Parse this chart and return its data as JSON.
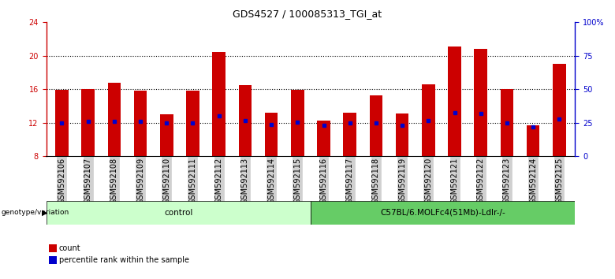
{
  "title": "GDS4527 / 100085313_TGI_at",
  "samples": [
    "GSM592106",
    "GSM592107",
    "GSM592108",
    "GSM592109",
    "GSM592110",
    "GSM592111",
    "GSM592112",
    "GSM592113",
    "GSM592114",
    "GSM592115",
    "GSM592116",
    "GSM592117",
    "GSM592118",
    "GSM592119",
    "GSM592120",
    "GSM592121",
    "GSM592122",
    "GSM592123",
    "GSM592124",
    "GSM592125"
  ],
  "bar_values": [
    15.9,
    16.05,
    16.75,
    15.82,
    13.0,
    15.82,
    20.42,
    16.5,
    13.2,
    15.9,
    12.3,
    13.2,
    15.3,
    13.1,
    16.6,
    21.1,
    20.85,
    16.0,
    11.7,
    19.0
  ],
  "blue_values": [
    12.02,
    12.12,
    12.2,
    12.2,
    12.0,
    12.0,
    12.82,
    12.3,
    11.82,
    12.1,
    11.7,
    12.0,
    12.0,
    11.72,
    12.3,
    13.2,
    13.15,
    12.0,
    11.5,
    12.42
  ],
  "bar_bottom": 8.0,
  "ylim": [
    8.0,
    24.0
  ],
  "yticks": [
    8,
    12,
    16,
    20,
    24
  ],
  "right_ylabels": [
    "0",
    "25",
    "50",
    "75",
    "100%"
  ],
  "bar_color": "#CC0000",
  "blue_color": "#0000CC",
  "control_samples": 10,
  "genotype_label": "genotype/variation",
  "group1_label": "control",
  "group2_label": "C57BL/6.MOLFc4(51Mb)-Ldlr-/-",
  "group1_color": "#ccffcc",
  "group2_color": "#66cc66",
  "legend_count": "count",
  "legend_pct": "percentile rank within the sample",
  "tick_color_left": "#CC0000",
  "tick_color_right": "#0000CC",
  "grid_dotted_at": [
    12,
    16,
    20
  ],
  "xticklabel_bg": "#d0d0d0",
  "bar_width": 0.5,
  "title_fontsize": 9,
  "tick_fontsize": 7,
  "label_fontsize": 7
}
